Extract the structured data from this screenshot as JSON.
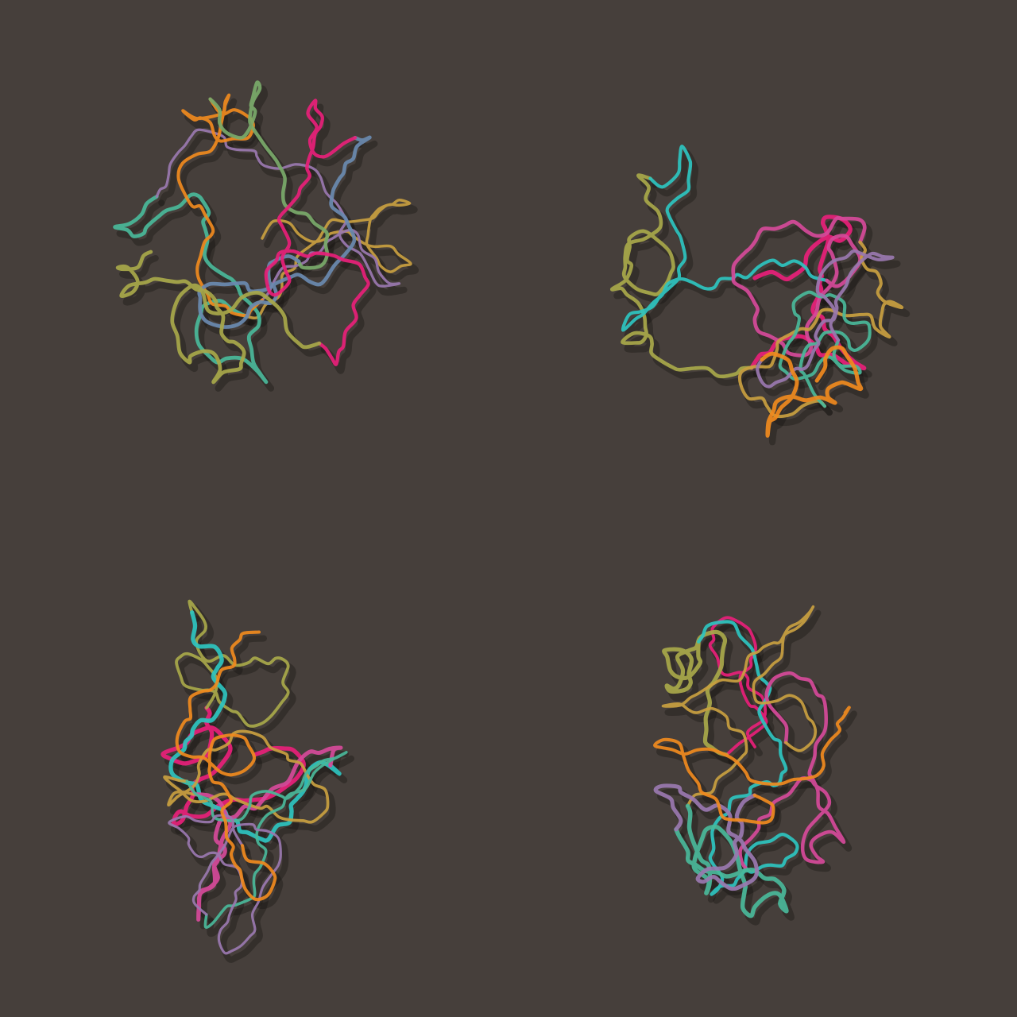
{
  "palette": [
    "#d64a9a",
    "#e8207a",
    "#f08a1e",
    "#c9a040",
    "#a8a84a",
    "#7aaa6a",
    "#4ab89a",
    "#2ec4c0",
    "#6a8ab0",
    "#9a78b0"
  ]
}
